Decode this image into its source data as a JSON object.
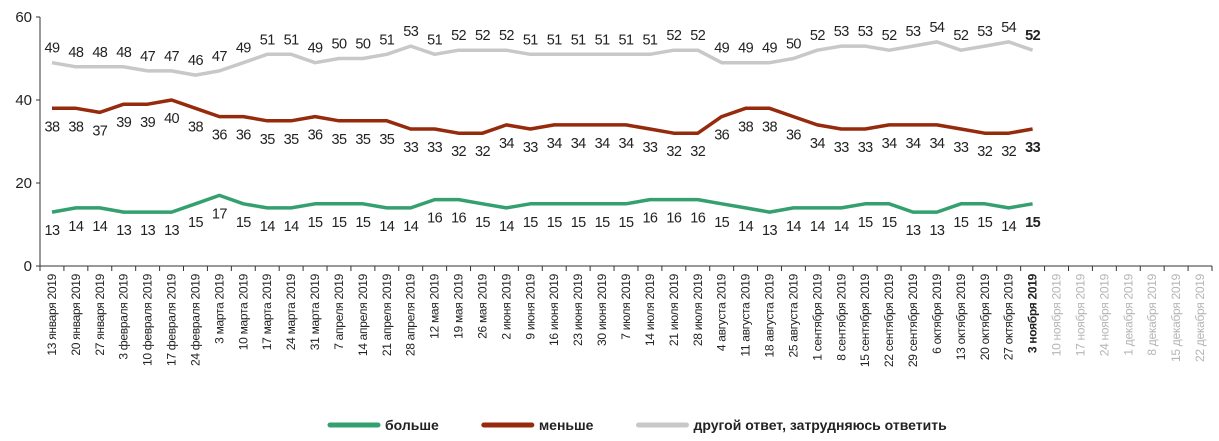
{
  "chart_data": {
    "type": "line",
    "categories": [
      "13 января 2019",
      "20 января 2019",
      "27 января 2019",
      "3 февраля 2019",
      "10 февраля 2019",
      "17 февраля 2019",
      "24 февраля 2019",
      "3 марта 2019",
      "10 марта 2019",
      "17 марта 2019",
      "24 марта 2019",
      "31 марта 2019",
      "7 апреля 2019",
      "14 апреля 2019",
      "21 апреля 2019",
      "28 апреля 2019",
      "12 мая 2019",
      "19 мая 2019",
      "26 мая 2019",
      "2 июня 2019",
      "9 июня 2019",
      "16 июня 2019",
      "23 июня 2019",
      "30 июня 2019",
      "7 июля 2019",
      "14 июля 2019",
      "21 июля 2019",
      "28 июля 2019",
      "4 августа 2019",
      "11 августа 2019",
      "18 августа 2019",
      "25 августа 2019",
      "1 сентября 2019",
      "8 сентября 2019",
      "15 сентября 2019",
      "22 сентября 2019",
      "29 сентября 2019",
      "6 октября 2019",
      "13 октября 2019",
      "20 октября 2019",
      "27 октября 2019",
      "3 ноября 2019",
      "10 ноября 2019",
      "17 ноября 2019",
      "24 ноября 2019",
      "1 декабря 2019",
      "8 декабря 2019",
      "15 декабря 2019",
      "22 декабря 2019"
    ],
    "series": [
      {
        "name": "больше",
        "color": "#35a06f",
        "values": [
          13,
          14,
          14,
          13,
          13,
          13,
          15,
          17,
          15,
          14,
          14,
          15,
          15,
          15,
          14,
          14,
          16,
          16,
          15,
          14,
          15,
          15,
          15,
          15,
          15,
          16,
          16,
          16,
          15,
          14,
          13,
          14,
          14,
          14,
          15,
          15,
          13,
          13,
          15,
          15,
          14,
          15,
          null,
          null,
          null,
          null,
          null,
          null,
          null
        ]
      },
      {
        "name": "меньше",
        "color": "#962a0c",
        "values": [
          38,
          38,
          37,
          39,
          39,
          40,
          38,
          36,
          36,
          35,
          35,
          36,
          35,
          35,
          35,
          33,
          33,
          32,
          32,
          34,
          33,
          34,
          34,
          34,
          34,
          33,
          32,
          32,
          36,
          38,
          38,
          36,
          34,
          33,
          33,
          34,
          34,
          34,
          33,
          32,
          32,
          33,
          null,
          null,
          null,
          null,
          null,
          null,
          null
        ]
      },
      {
        "name": "другой ответ, затрудняюсь ответить",
        "color": "#c8c8c8",
        "values": [
          49,
          48,
          48,
          48,
          47,
          47,
          46,
          47,
          49,
          51,
          51,
          49,
          50,
          50,
          51,
          53,
          51,
          52,
          52,
          52,
          51,
          51,
          51,
          51,
          51,
          51,
          52,
          52,
          49,
          49,
          49,
          50,
          52,
          53,
          53,
          52,
          53,
          54,
          52,
          53,
          54,
          52,
          null,
          null,
          null,
          null,
          null,
          null,
          null
        ]
      }
    ],
    "ylim": [
      0,
      60
    ],
    "yticks": [
      0,
      20,
      40,
      60
    ],
    "grid": false,
    "legend": "bottom"
  }
}
